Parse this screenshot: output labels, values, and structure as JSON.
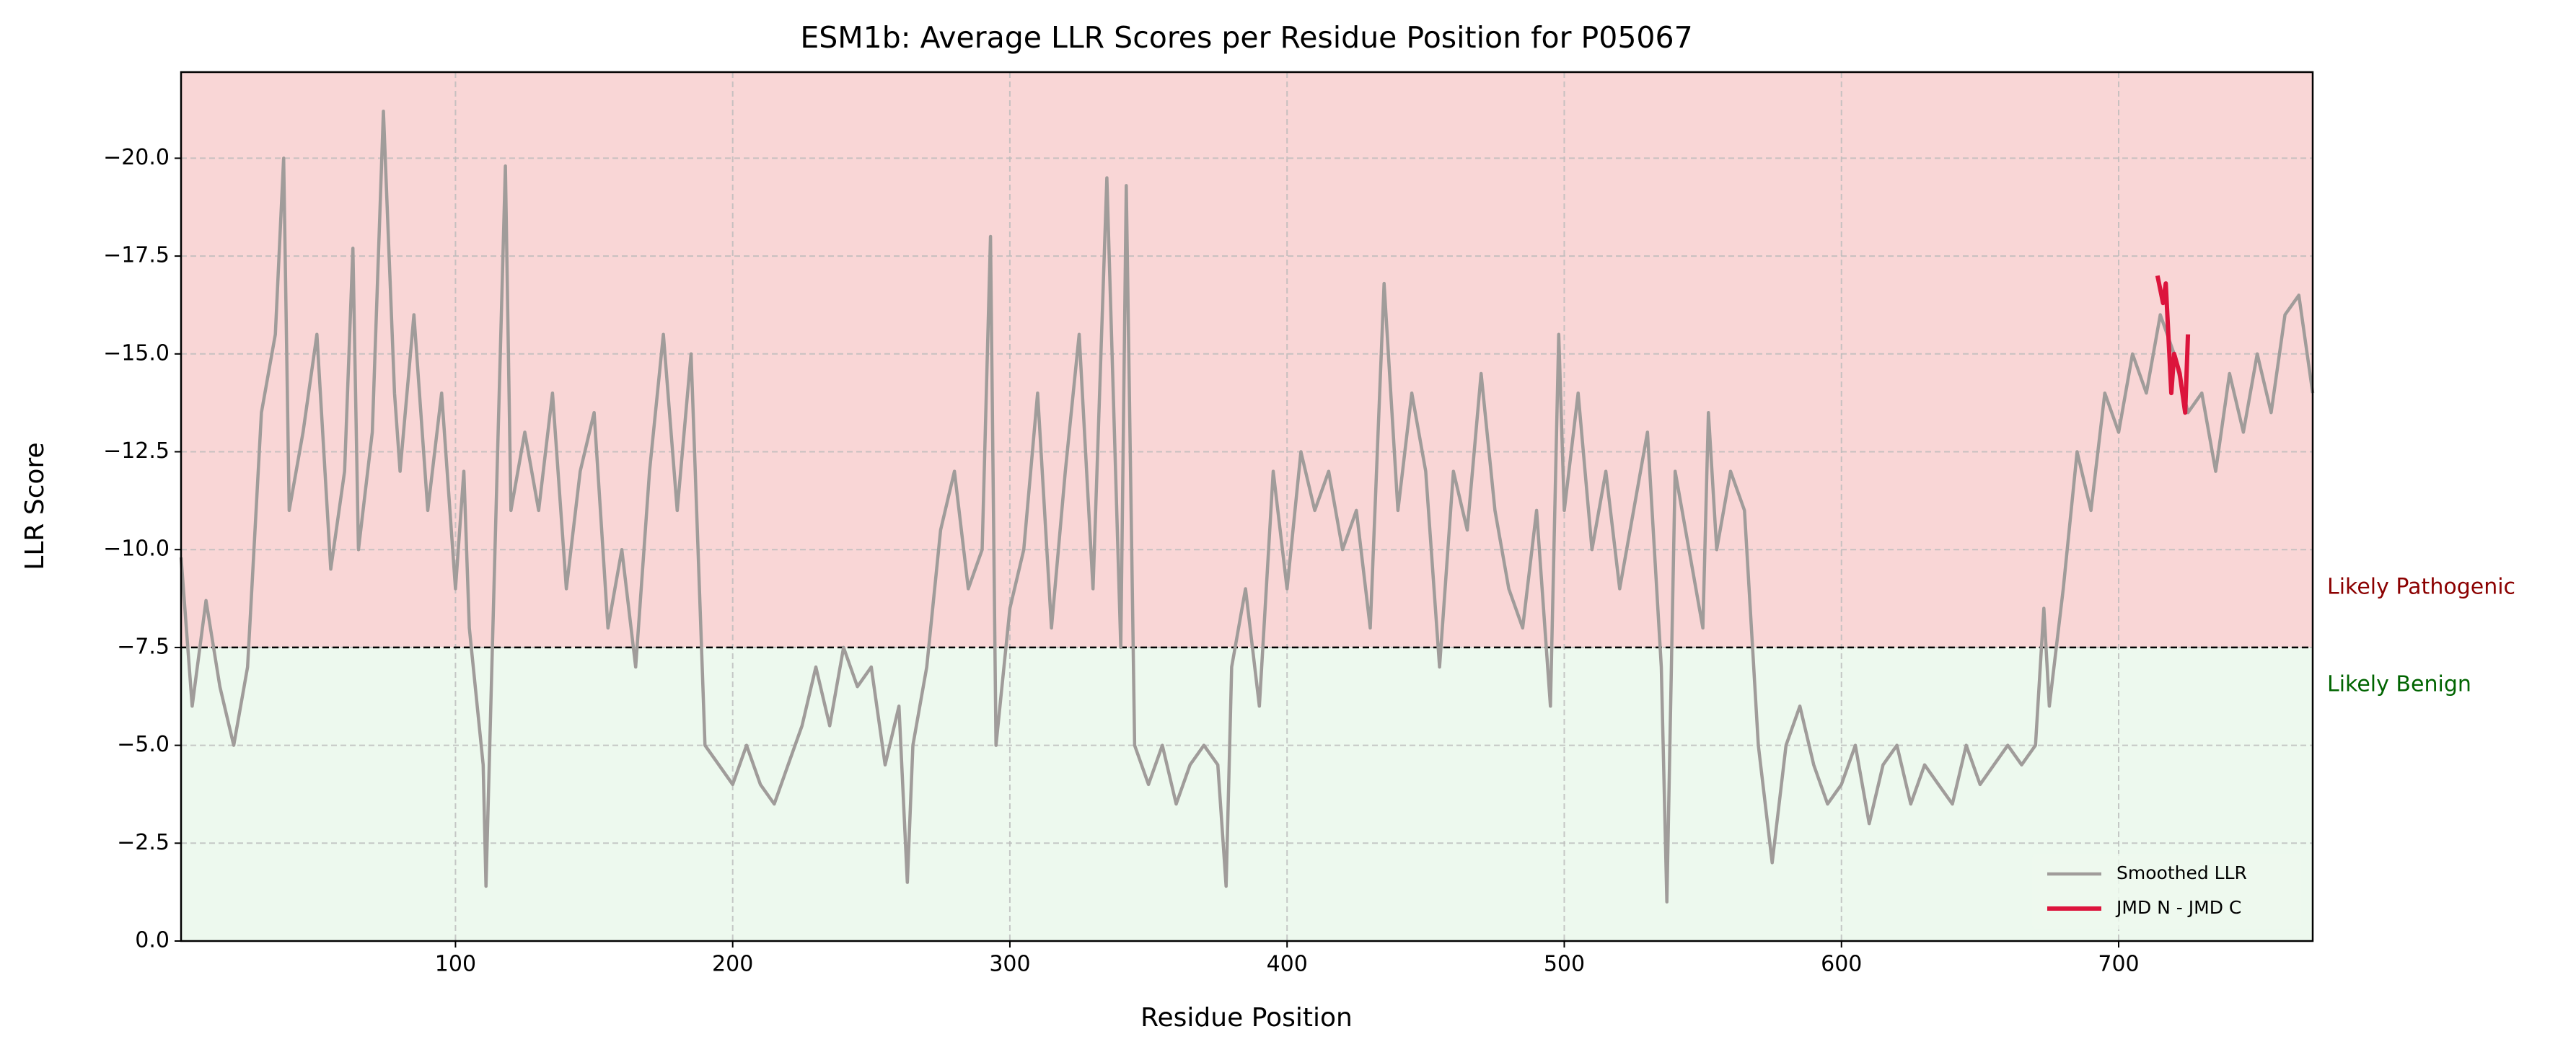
{
  "chart_data": {
    "type": "line",
    "title": "ESM1b: Average LLR Scores per Residue Position for P05067",
    "xlabel": "Residue Position",
    "ylabel": "LLR Score",
    "xlim": [
      1,
      770
    ],
    "ylim": [
      0,
      -22.2
    ],
    "xticks": [
      100,
      200,
      300,
      400,
      500,
      600,
      700
    ],
    "yticks": [
      {
        "value": 0,
        "label": "0.0"
      },
      {
        "value": -2.5,
        "label": "−2.5"
      },
      {
        "value": -5,
        "label": "−5.0"
      },
      {
        "value": -7.5,
        "label": "−7.5"
      },
      {
        "value": -10,
        "label": "−10.0"
      },
      {
        "value": -12.5,
        "label": "−12.5"
      },
      {
        "value": -15,
        "label": "−15.0"
      },
      {
        "value": -17.5,
        "label": "−17.5"
      },
      {
        "value": -20,
        "label": "−20.0"
      }
    ],
    "grid": true,
    "threshold": -7.5,
    "regions": [
      {
        "label": "Likely Pathogenic",
        "color": "#f9d6d6",
        "text_color": "#8b0000"
      },
      {
        "label": "Likely Benign",
        "color": "#edf9ee",
        "text_color": "#006400"
      }
    ],
    "legend": "lower right",
    "series": [
      {
        "name": "Smoothed LLR",
        "color": "#a09c9a",
        "x": [
          1,
          5,
          10,
          15,
          20,
          25,
          30,
          35,
          38,
          40,
          45,
          50,
          55,
          60,
          63,
          65,
          70,
          74,
          78,
          80,
          85,
          90,
          95,
          100,
          103,
          105,
          110,
          111,
          115,
          118,
          120,
          125,
          130,
          135,
          140,
          145,
          150,
          155,
          160,
          165,
          170,
          175,
          180,
          185,
          190,
          195,
          200,
          205,
          210,
          215,
          220,
          225,
          230,
          235,
          240,
          245,
          250,
          255,
          260,
          263,
          265,
          270,
          275,
          280,
          285,
          290,
          293,
          295,
          300,
          305,
          310,
          315,
          320,
          325,
          330,
          335,
          340,
          342,
          345,
          350,
          355,
          360,
          365,
          370,
          375,
          378,
          380,
          385,
          390,
          395,
          400,
          405,
          410,
          415,
          420,
          425,
          430,
          435,
          440,
          445,
          450,
          455,
          460,
          465,
          470,
          475,
          480,
          485,
          490,
          495,
          498,
          500,
          505,
          510,
          515,
          520,
          525,
          530,
          535,
          537,
          540,
          545,
          550,
          552,
          555,
          560,
          565,
          570,
          575,
          580,
          585,
          590,
          595,
          600,
          605,
          610,
          615,
          620,
          625,
          630,
          635,
          640,
          645,
          650,
          655,
          660,
          665,
          670,
          673,
          675,
          680,
          685,
          690,
          695,
          700,
          705,
          710,
          715,
          720,
          725,
          730,
          735,
          740,
          745,
          750,
          755,
          760,
          765,
          770
        ],
        "values": [
          -9.8,
          -6,
          -8.7,
          -6.5,
          -5,
          -7,
          -13.5,
          -15.5,
          -20,
          -11,
          -13,
          -15.5,
          -9.5,
          -12,
          -17.7,
          -10,
          -13,
          -21.2,
          -14,
          -12,
          -16,
          -11,
          -14,
          -9,
          -12,
          -8,
          -4.5,
          -1.4,
          -12,
          -19.8,
          -11,
          -13,
          -11,
          -14,
          -9,
          -12,
          -13.5,
          -8,
          -10,
          -7,
          -12,
          -15.5,
          -11,
          -15,
          -5,
          -4.5,
          -4,
          -5,
          -4,
          -3.5,
          -4.5,
          -5.5,
          -7,
          -5.5,
          -7.5,
          -6.5,
          -7,
          -4.5,
          -6,
          -1.5,
          -5,
          -7,
          -10.5,
          -12,
          -9,
          -10,
          -18,
          -5,
          -8.5,
          -10,
          -14,
          -8,
          -12,
          -15.5,
          -9,
          -19.5,
          -7.5,
          -19.3,
          -5,
          -4,
          -5,
          -3.5,
          -4.5,
          -5,
          -4.5,
          -1.4,
          -7,
          -9,
          -6,
          -12,
          -9,
          -12.5,
          -11,
          -12,
          -10,
          -11,
          -8,
          -16.8,
          -11,
          -14,
          -12,
          -7,
          -12,
          -10.5,
          -14.5,
          -11,
          -9,
          -8,
          -11,
          -6,
          -15.5,
          -11,
          -14,
          -10,
          -12,
          -9,
          -11,
          -13,
          -7,
          -1,
          -12,
          -10,
          -8,
          -13.5,
          -10,
          -12,
          -11,
          -5,
          -2,
          -5,
          -6,
          -4.5,
          -3.5,
          -4,
          -5,
          -3,
          -4.5,
          -5,
          -3.5,
          -4.5,
          -4,
          -3.5,
          -5,
          -4,
          -4.5,
          -5,
          -4.5,
          -5,
          -8.5,
          -6,
          -9,
          -12.5,
          -11,
          -14,
          -13,
          -15,
          -14,
          -16,
          -15,
          -13.5,
          -14,
          -12,
          -14.5,
          -13,
          -15,
          -13.5,
          -16,
          -16.5,
          -14
        ]
      },
      {
        "name": "JMD N - JMD C",
        "color": "#dc143c",
        "x": [
          714,
          716,
          717,
          719,
          720,
          722,
          724,
          725
        ],
        "values": [
          -17,
          -16.3,
          -16.8,
          -14,
          -15,
          -14.5,
          -13.5,
          -15.5
        ]
      }
    ]
  }
}
